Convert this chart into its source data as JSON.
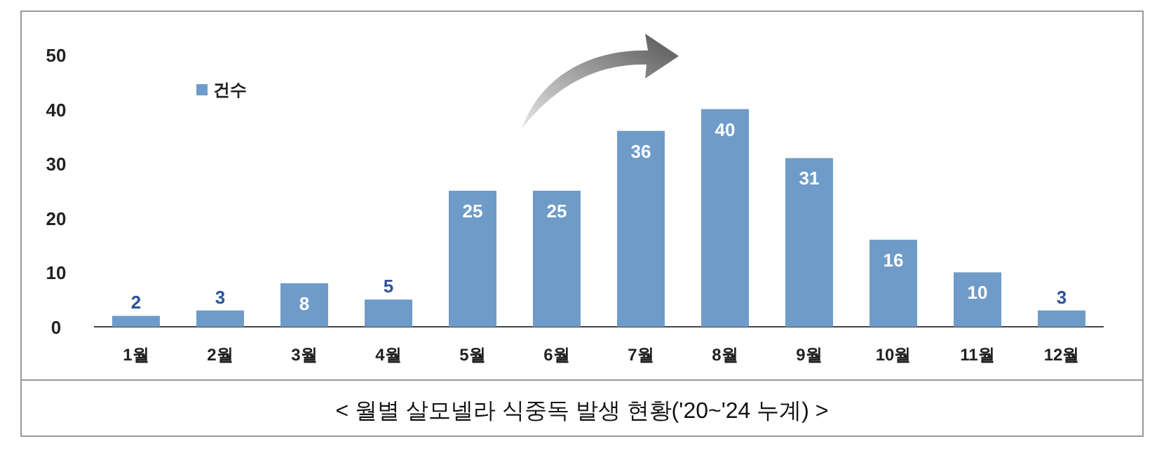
{
  "chart_data": {
    "type": "bar",
    "categories": [
      "1월",
      "2월",
      "3월",
      "4월",
      "5월",
      "6월",
      "7월",
      "8월",
      "9월",
      "10월",
      "11월",
      "12월"
    ],
    "series": [
      {
        "name": "건수",
        "color": "#6f9bc8",
        "values": [
          2,
          3,
          8,
          5,
          25,
          25,
          36,
          40,
          31,
          16,
          10,
          3
        ]
      }
    ],
    "ylim": [
      0,
      50
    ],
    "yticks": [
      0,
      10,
      20,
      30,
      40,
      50
    ],
    "data_labels": true,
    "legend": "top left",
    "annotations": [
      "< 월별 살모넬라 식중독 발생 현황('20~'24 누계) >"
    ]
  }
}
